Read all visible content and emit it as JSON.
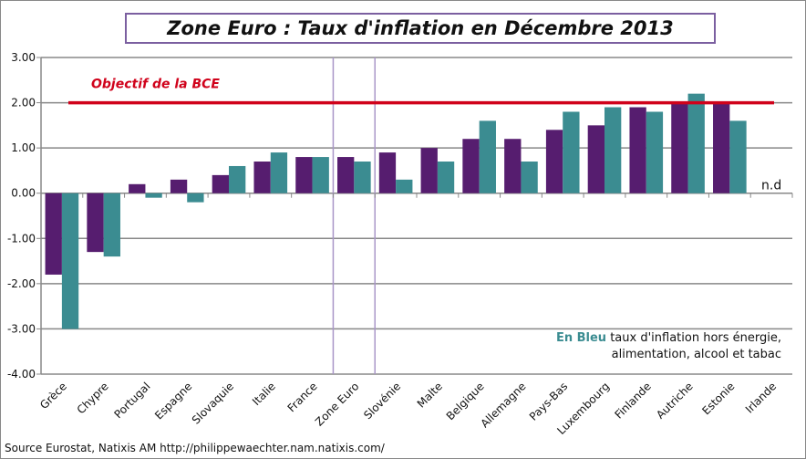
{
  "chart_data": {
    "type": "bar",
    "title": "Zone Euro : Taux d'inflation en Décembre 2013",
    "categories": [
      "Grèce",
      "Chypre",
      "Portugal",
      "Espagne",
      "Slovaquie",
      "Italie",
      "France",
      "Zone Euro",
      "Slovénie",
      "Malte",
      "Belgique",
      "Allemagne",
      "Pays-Bas",
      "Luxembourg",
      "Finlande",
      "Autriche",
      "Estonie",
      "Irlande"
    ],
    "series": [
      {
        "values": [
          -1.8,
          -1.3,
          0.2,
          0.3,
          0.4,
          0.7,
          0.8,
          0.8,
          0.9,
          1.0,
          1.2,
          1.2,
          1.4,
          1.5,
          1.9,
          2.0,
          2.0,
          null
        ],
        "color": "#561d6f"
      },
      {
        "values": [
          -3.0,
          -1.4,
          -0.1,
          -0.2,
          0.6,
          0.9,
          0.8,
          0.7,
          0.3,
          0.7,
          1.6,
          0.7,
          1.8,
          1.9,
          1.8,
          2.2,
          1.6,
          null
        ],
        "color": "#3b8c91"
      }
    ],
    "ylim": [
      -4,
      3
    ],
    "yticks": [
      "3.00",
      "2.00",
      "1.00",
      "0.00",
      "-1.00",
      "-2.00",
      "-3.00",
      "-4.00"
    ],
    "grid": true,
    "target_line": {
      "value": 2.0,
      "label": "Objectif de la BCE",
      "color": "#d0021b"
    },
    "highlight_category": "Zone Euro",
    "na_label": "n.d",
    "note_bold": "En Bleu",
    "note_line1": " taux d'inflation hors énergie,",
    "note_line2": "alimentation, alcool et tabac"
  },
  "source": "Source Eurostat, Natixis AM http://philippewaechter.nam.natixis.com/"
}
